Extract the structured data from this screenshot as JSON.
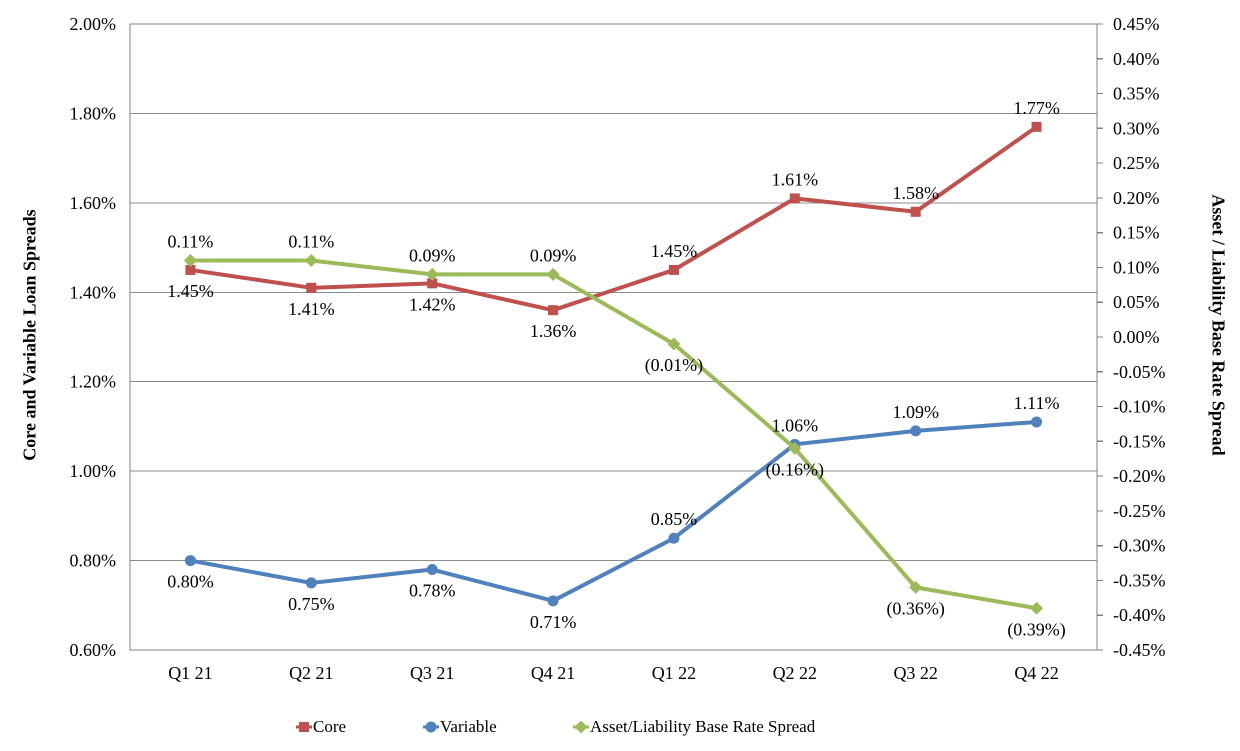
{
  "chart_data": {
    "type": "line",
    "title": "",
    "categories": [
      "Q1 21",
      "Q2 21",
      "Q3 21",
      "Q4 21",
      "Q1 22",
      "Q2 22",
      "Q3 22",
      "Q4 22"
    ],
    "series": [
      {
        "name": "Core",
        "axis": "left",
        "color": "#C0504D",
        "marker": "square",
        "values": [
          1.45,
          1.41,
          1.42,
          1.36,
          1.45,
          1.61,
          1.58,
          1.77
        ],
        "point_labels": [
          "1.45%",
          "1.41%",
          "1.42%",
          "1.36%",
          "1.45%",
          "1.61%",
          "1.58%",
          "1.77%"
        ],
        "label_side": [
          "below",
          "below",
          "below",
          "below",
          "above",
          "above",
          "above",
          "above"
        ]
      },
      {
        "name": "Variable",
        "axis": "left",
        "color": "#4F81BD",
        "marker": "circle",
        "values": [
          0.8,
          0.75,
          0.78,
          0.71,
          0.85,
          1.06,
          1.09,
          1.11
        ],
        "point_labels": [
          "0.80%",
          "0.75%",
          "0.78%",
          "0.71%",
          "0.85%",
          "1.06%",
          "1.09%",
          "1.11%"
        ],
        "label_side": [
          "below",
          "below",
          "below",
          "below",
          "above",
          "above",
          "above",
          "above"
        ]
      },
      {
        "name": "Asset/Liability Base Rate Spread",
        "axis": "right",
        "color": "#9BBB59",
        "marker": "diamond",
        "values": [
          0.11,
          0.11,
          0.09,
          0.09,
          -0.01,
          -0.16,
          -0.36,
          -0.39
        ],
        "point_labels": [
          "0.11%",
          "0.11%",
          "0.09%",
          "0.09%",
          "(0.01%)",
          "(0.16%)",
          "(0.36%)",
          "(0.39%)"
        ],
        "label_side": [
          "above",
          "above",
          "above",
          "above",
          "below",
          "below",
          "below",
          "below"
        ]
      }
    ],
    "left_axis": {
      "title": "Core and Variable Loan Spreads",
      "min": 0.6,
      "max": 2.0,
      "step": 0.2,
      "tick_labels": [
        "2.00%",
        "1.80%",
        "1.60%",
        "1.40%",
        "1.20%",
        "1.00%",
        "0.80%",
        "0.60%"
      ]
    },
    "right_axis": {
      "title": "Asset / Liability Base Rate Spread",
      "min": -0.45,
      "max": 0.45,
      "step": 0.05,
      "tick_labels": [
        "0.45%",
        "0.40%",
        "0.35%",
        "0.30%",
        "0.25%",
        "0.20%",
        "0.15%",
        "0.10%",
        "0.05%",
        "0.00%",
        "-0.05%",
        "-0.10%",
        "-0.15%",
        "-0.20%",
        "-0.25%",
        "-0.30%",
        "-0.35%",
        "-0.40%",
        "-0.45%"
      ]
    },
    "grid": {
      "horizontal": true,
      "vertical": false
    },
    "legend_position": "bottom"
  },
  "colors": {
    "grid": "#8C8C8C",
    "axis_border": "#808080",
    "text": "#000000",
    "background": "#FFFFFF"
  }
}
